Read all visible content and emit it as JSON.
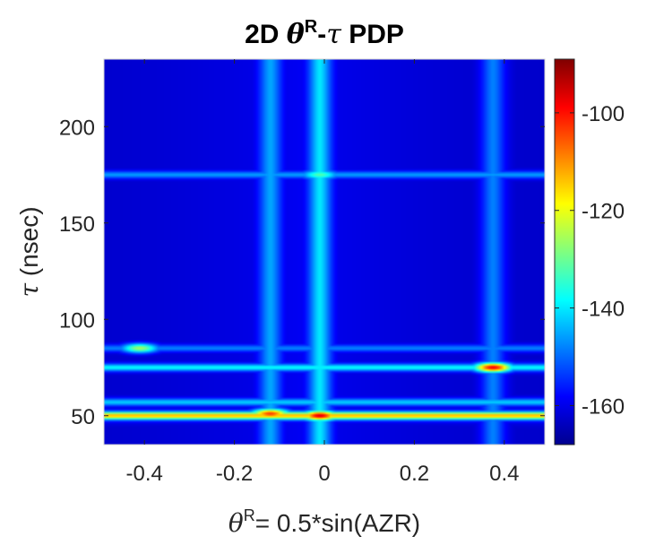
{
  "chart_data": {
    "type": "heatmap",
    "title": {
      "prefix": "2D ",
      "theta": "θ",
      "sup": "R",
      "dash": "-",
      "tau": "τ",
      "suffix": " PDP"
    },
    "xlabel": {
      "theta": "θ",
      "sup": "R",
      "rest": "= 0.5*sin(AZR)"
    },
    "ylabel": {
      "tau": "τ",
      "rest": " (nsec)"
    },
    "xlim": [
      -0.49,
      0.49
    ],
    "ylim": [
      35,
      235
    ],
    "x_ticks": [
      -0.4,
      -0.2,
      0,
      0.2,
      0.4
    ],
    "x_tick_labels": [
      "-0.4",
      "-0.2",
      "0",
      "0.2",
      "0.4"
    ],
    "y_ticks": [
      50,
      100,
      150,
      200
    ],
    "y_tick_labels": [
      "50",
      "100",
      "150",
      "200"
    ],
    "colorbar": {
      "range": [
        -168,
        -89
      ],
      "ticks": [
        -160,
        -140,
        -120,
        -100
      ],
      "tick_labels": [
        "-160",
        "-140",
        "-120",
        "-100"
      ],
      "colormap": "jet"
    },
    "background_db": -163,
    "horizontal_bands": [
      {
        "tau": 50,
        "peak_db": -112
      },
      {
        "tau": 57,
        "peak_db": -142
      },
      {
        "tau": 75,
        "peak_db": -138
      },
      {
        "tau": 85,
        "peak_db": -148
      },
      {
        "tau": 175,
        "peak_db": -146
      }
    ],
    "vertical_bands": [
      {
        "theta": -0.12,
        "peak_db": -145
      },
      {
        "theta": -0.01,
        "peak_db": -140
      },
      {
        "theta": 0.375,
        "peak_db": -148
      }
    ],
    "hotspots": [
      {
        "theta": -0.01,
        "tau": 50,
        "db": -96
      },
      {
        "theta": -0.12,
        "tau": 51,
        "db": -103
      },
      {
        "theta": 0.375,
        "tau": 75,
        "db": -98
      },
      {
        "theta": -0.41,
        "tau": 85,
        "db": -126
      },
      {
        "theta": -0.01,
        "tau": 175,
        "db": -132
      }
    ]
  }
}
